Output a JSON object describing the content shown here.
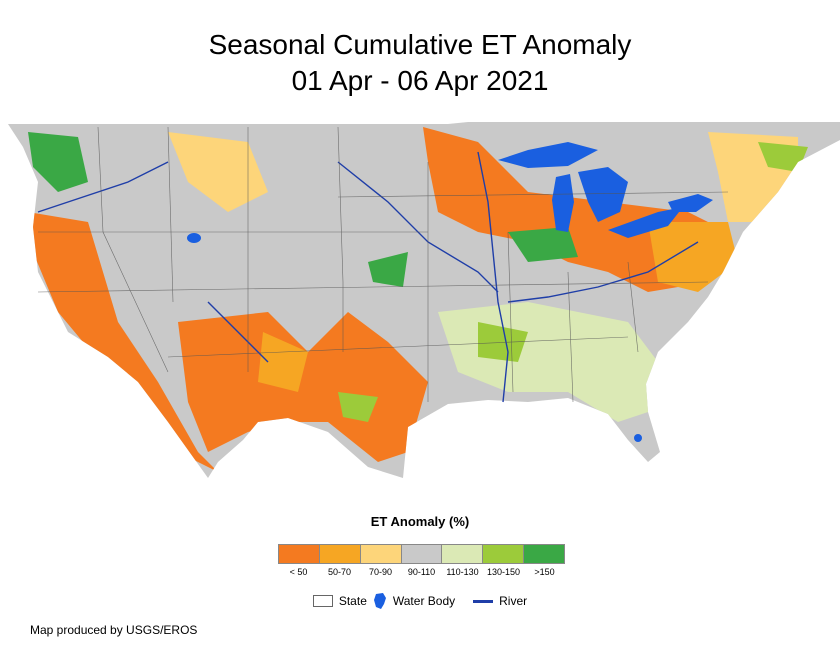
{
  "title": {
    "line1": "Seasonal Cumulative ET Anomaly",
    "line2": "01 Apr - 06 Apr 2021"
  },
  "legend": {
    "title": "ET Anomaly (%)",
    "classes": [
      {
        "label": "< 50",
        "color": "#f47a20"
      },
      {
        "label": "50-70",
        "color": "#f6a623"
      },
      {
        "label": "70-90",
        "color": "#fdd57a"
      },
      {
        "label": "90-110",
        "color": "#c9c9c9"
      },
      {
        "label": "110-130",
        "color": "#dbe9b5"
      },
      {
        "label": "130-150",
        "color": "#9ccb3a"
      },
      {
        "label": ">150",
        "color": "#3aa845"
      }
    ],
    "keys": {
      "state": "State",
      "water_body": "Water Body",
      "river": "River"
    }
  },
  "colors": {
    "water": "#1a5fe0",
    "river": "#1f3ea8",
    "state_border": "#555555"
  },
  "footer": "Map produced by USGS/EROS"
}
